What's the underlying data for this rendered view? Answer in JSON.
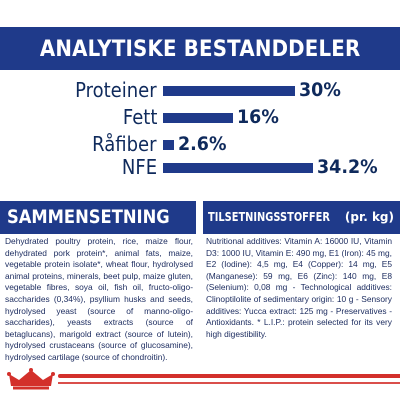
{
  "header": {
    "title": "ANALYTISKE BESTANDDELER"
  },
  "chart_data": {
    "type": "bar",
    "categories": [
      "Proteiner",
      "Fett",
      "Råfiber",
      "NFE"
    ],
    "values": [
      30,
      16,
      2.6,
      34.2
    ],
    "value_labels": [
      "30%",
      "16%",
      "2.6%",
      "34.2%"
    ],
    "unit": "%"
  },
  "sections": {
    "composition_title": "SAMMENSETNING",
    "composition_text": "Dehydrated poultry protein, rice, maize flour, dehydrated pork protein*, animal fats, maize, vegetable protein isolate*, wheat flour, hydrolysed animal proteins, minerals, beet pulp, maize gluten, vegetable fibres, soya oil, fish oil, fructo-oligo-saccharides (0,34%), psyllium husks and seeds, hydrolysed yeast (source of manno-oligo-saccharides), yeasts extracts (source of betaglucans), marigold extract (source of lutein), hydrolysed crustaceans (source of glucosamine), hydrolysed cartilage (source of chondroitin).",
    "additives_title": "TILSETNINGSSTOFFER",
    "additives_unit": "(pr. kg)",
    "additives_text": "Nutritional additives: Vitamin A: 16000 IU, Vitamin D3: 1000 IU, Vitamin E: 490 mg, E1 (Iron): 45 mg, E2 (Iodine): 4,5 mg, E4 (Copper): 14 mg, E5 (Manganese): 59 mg, E6 (Zinc): 140 mg, E8 (Selenium): 0,08 mg - Technological additives: Clinoptilolite of sedimentary origin: 10 g - Sensory additives: Yucca extract: 125 mg - Preservatives - Antioxidants. * L.I.P.: protein selected for its very high digestibility."
  },
  "colors": {
    "navy": "#1f3a8a",
    "red": "#d3302b",
    "text": "#1a2a5e"
  },
  "logo": {
    "icon": "crown-icon"
  }
}
